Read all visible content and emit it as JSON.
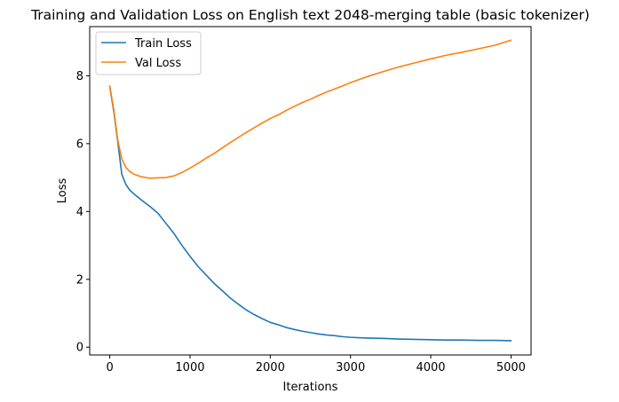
{
  "chart_data": {
    "type": "line",
    "title": "Training and Validation Loss on English text 2048-merging table (basic tokenizer)",
    "xlabel": "Iterations",
    "ylabel": "Loss",
    "xlim": [
      -250,
      5250
    ],
    "ylim": [
      -0.23,
      9.45
    ],
    "xticks": [
      0,
      1000,
      2000,
      3000,
      4000,
      5000
    ],
    "yticks": [
      0,
      2,
      4,
      6,
      8
    ],
    "grid": false,
    "legend_position": "upper-left",
    "series": [
      {
        "name": "Train Loss",
        "color": "#1f77b4",
        "x": [
          0,
          50,
          100,
          150,
          200,
          250,
          300,
          400,
          500,
          600,
          700,
          800,
          900,
          1000,
          1100,
          1200,
          1300,
          1400,
          1500,
          1600,
          1700,
          1800,
          1900,
          2000,
          2100,
          2200,
          2300,
          2400,
          2500,
          2600,
          2700,
          2800,
          2900,
          3000,
          3200,
          3400,
          3600,
          3800,
          4000,
          4200,
          4400,
          4600,
          4800,
          5000
        ],
        "values": [
          7.68,
          6.95,
          6.05,
          5.1,
          4.8,
          4.63,
          4.52,
          4.33,
          4.15,
          3.95,
          3.65,
          3.35,
          3.0,
          2.68,
          2.38,
          2.13,
          1.88,
          1.67,
          1.45,
          1.27,
          1.1,
          0.96,
          0.84,
          0.73,
          0.66,
          0.58,
          0.52,
          0.47,
          0.43,
          0.39,
          0.36,
          0.34,
          0.31,
          0.29,
          0.27,
          0.26,
          0.24,
          0.23,
          0.22,
          0.21,
          0.21,
          0.2,
          0.2,
          0.19
        ]
      },
      {
        "name": "Val Loss",
        "color": "#ff7f0e",
        "x": [
          0,
          50,
          100,
          150,
          200,
          250,
          300,
          400,
          500,
          600,
          700,
          800,
          900,
          1000,
          1100,
          1200,
          1300,
          1400,
          1500,
          1600,
          1700,
          1800,
          1900,
          2000,
          2100,
          2200,
          2300,
          2400,
          2500,
          2600,
          2700,
          2800,
          2900,
          3000,
          3200,
          3400,
          3600,
          3800,
          4000,
          4200,
          4400,
          4600,
          4800,
          5000
        ],
        "values": [
          7.7,
          7.0,
          6.1,
          5.55,
          5.3,
          5.18,
          5.1,
          5.02,
          4.98,
          4.99,
          5.0,
          5.05,
          5.15,
          5.28,
          5.42,
          5.57,
          5.71,
          5.87,
          6.03,
          6.18,
          6.33,
          6.47,
          6.61,
          6.74,
          6.85,
          6.98,
          7.1,
          7.21,
          7.31,
          7.42,
          7.52,
          7.61,
          7.7,
          7.8,
          7.97,
          8.12,
          8.26,
          8.38,
          8.5,
          8.61,
          8.7,
          8.8,
          8.9,
          9.05
        ]
      }
    ]
  }
}
